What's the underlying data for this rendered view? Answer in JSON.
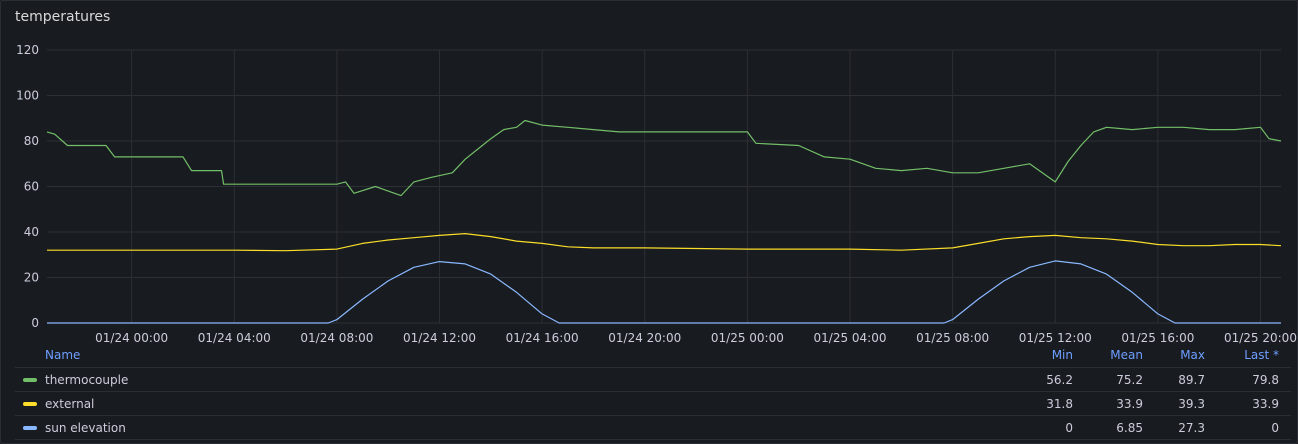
{
  "panel": {
    "title": "temperatures"
  },
  "chart_data": {
    "type": "line",
    "title": "temperatures",
    "xlabel": "",
    "ylabel": "",
    "ylim": [
      0,
      120
    ],
    "yticks": [
      "0",
      "20",
      "40",
      "60",
      "80",
      "100",
      "120"
    ],
    "x_start": "01/23 20:42",
    "x_end": "01/25 20:48",
    "xticks": [
      "01/24 00:00",
      "01/24 04:00",
      "01/24 08:00",
      "01/24 12:00",
      "01/24 16:00",
      "01/24 20:00",
      "01/25 00:00",
      "01/25 04:00",
      "01/25 08:00",
      "01/25 12:00",
      "01/25 16:00",
      "01/25 20:00"
    ],
    "grid": true,
    "legend_position": "bottom",
    "colors": {
      "thermocouple": "#73bf69",
      "external": "#fade2a",
      "sun elevation": "#8ab8ff"
    },
    "series": [
      {
        "name": "thermocouple",
        "color": "#73bf69",
        "points": [
          [
            "01/23 20:42",
            84
          ],
          [
            "01/23 21:00",
            83
          ],
          [
            "01/23 21:30",
            78
          ],
          [
            "01/23 23:00",
            78
          ],
          [
            "01/23 23:20",
            73
          ],
          [
            "01/24 02:00",
            73
          ],
          [
            "01/24 02:20",
            67
          ],
          [
            "01/24 03:30",
            67
          ],
          [
            "01/24 03:35",
            61
          ],
          [
            "01/24 08:00",
            61
          ],
          [
            "01/24 08:20",
            62
          ],
          [
            "01/24 08:40",
            57
          ],
          [
            "01/24 09:30",
            60
          ],
          [
            "01/24 10:00",
            58
          ],
          [
            "01/24 10:30",
            56
          ],
          [
            "01/24 11:00",
            62
          ],
          [
            "01/24 11:40",
            64
          ],
          [
            "01/24 12:30",
            66
          ],
          [
            "01/24 13:00",
            72
          ],
          [
            "01/24 13:40",
            78
          ],
          [
            "01/24 14:00",
            81
          ],
          [
            "01/24 14:30",
            85
          ],
          [
            "01/24 15:00",
            86
          ],
          [
            "01/24 15:20",
            89
          ],
          [
            "01/24 16:00",
            87
          ],
          [
            "01/24 17:00",
            86
          ],
          [
            "01/24 18:00",
            85
          ],
          [
            "01/24 19:00",
            84
          ],
          [
            "01/25 00:00",
            84
          ],
          [
            "01/25 00:20",
            79
          ],
          [
            "01/25 02:00",
            78
          ],
          [
            "01/25 03:00",
            73
          ],
          [
            "01/25 04:00",
            72
          ],
          [
            "01/25 05:00",
            68
          ],
          [
            "01/25 06:00",
            67
          ],
          [
            "01/25 07:00",
            68
          ],
          [
            "01/25 08:00",
            66
          ],
          [
            "01/25 09:00",
            66
          ],
          [
            "01/25 10:00",
            68
          ],
          [
            "01/25 11:00",
            70
          ],
          [
            "01/25 12:00",
            62
          ],
          [
            "01/25 12:30",
            71
          ],
          [
            "01/25 13:00",
            78
          ],
          [
            "01/25 13:30",
            84
          ],
          [
            "01/25 14:00",
            86
          ],
          [
            "01/25 15:00",
            85
          ],
          [
            "01/25 16:00",
            86
          ],
          [
            "01/25 17:00",
            86
          ],
          [
            "01/25 18:00",
            85
          ],
          [
            "01/25 19:00",
            85
          ],
          [
            "01/25 20:00",
            86
          ],
          [
            "01/25 20:20",
            81
          ],
          [
            "01/25 20:48",
            80
          ]
        ]
      },
      {
        "name": "external",
        "color": "#fade2a",
        "points": [
          [
            "01/23 20:42",
            32
          ],
          [
            "01/24 04:00",
            32
          ],
          [
            "01/24 06:00",
            31.8
          ],
          [
            "01/24 08:00",
            32.5
          ],
          [
            "01/24 09:00",
            35
          ],
          [
            "01/24 10:00",
            36.5
          ],
          [
            "01/24 11:00",
            37.5
          ],
          [
            "01/24 12:00",
            38.5
          ],
          [
            "01/24 13:00",
            39.3
          ],
          [
            "01/24 14:00",
            38
          ],
          [
            "01/24 15:00",
            36
          ],
          [
            "01/24 16:00",
            35
          ],
          [
            "01/24 17:00",
            33.5
          ],
          [
            "01/24 18:00",
            33
          ],
          [
            "01/24 20:00",
            33
          ],
          [
            "01/25 00:00",
            32.5
          ],
          [
            "01/25 04:00",
            32.5
          ],
          [
            "01/25 06:00",
            32
          ],
          [
            "01/25 08:00",
            33
          ],
          [
            "01/25 09:00",
            35
          ],
          [
            "01/25 10:00",
            37
          ],
          [
            "01/25 11:00",
            38
          ],
          [
            "01/25 12:00",
            38.5
          ],
          [
            "01/25 13:00",
            37.5
          ],
          [
            "01/25 14:00",
            37
          ],
          [
            "01/25 15:00",
            36
          ],
          [
            "01/25 16:00",
            34.5
          ],
          [
            "01/25 17:00",
            34
          ],
          [
            "01/25 18:00",
            34
          ],
          [
            "01/25 19:00",
            34.5
          ],
          [
            "01/25 20:00",
            34.5
          ],
          [
            "01/25 20:48",
            34
          ]
        ]
      },
      {
        "name": "sun elevation",
        "color": "#8ab8ff",
        "points": [
          [
            "01/23 20:42",
            0
          ],
          [
            "01/24 07:40",
            0
          ],
          [
            "01/24 08:00",
            1.5
          ],
          [
            "01/24 09:00",
            10.5
          ],
          [
            "01/24 10:00",
            18.5
          ],
          [
            "01/24 11:00",
            24.5
          ],
          [
            "01/24 12:00",
            27
          ],
          [
            "01/24 13:00",
            26
          ],
          [
            "01/24 14:00",
            21.5
          ],
          [
            "01/24 15:00",
            13.5
          ],
          [
            "01/24 16:00",
            4
          ],
          [
            "01/24 16:40",
            0
          ],
          [
            "01/25 07:40",
            0
          ],
          [
            "01/25 08:00",
            1.5
          ],
          [
            "01/25 09:00",
            10.5
          ],
          [
            "01/25 10:00",
            18.5
          ],
          [
            "01/25 11:00",
            24.5
          ],
          [
            "01/25 12:00",
            27.3
          ],
          [
            "01/25 13:00",
            26
          ],
          [
            "01/25 14:00",
            21.5
          ],
          [
            "01/25 15:00",
            13.5
          ],
          [
            "01/25 16:00",
            4
          ],
          [
            "01/25 16:40",
            0
          ],
          [
            "01/25 20:48",
            0
          ]
        ]
      }
    ]
  },
  "legend": {
    "headers": {
      "name": "Name",
      "min": "Min",
      "mean": "Mean",
      "max": "Max",
      "last": "Last *"
    },
    "rows": [
      {
        "name": "thermocouple",
        "color": "#73bf69",
        "min": "56.2",
        "mean": "75.2",
        "max": "89.7",
        "last": "79.8"
      },
      {
        "name": "external",
        "color": "#fade2a",
        "min": "31.8",
        "mean": "33.9",
        "max": "39.3",
        "last": "33.9"
      },
      {
        "name": "sun elevation",
        "color": "#8ab8ff",
        "min": "0",
        "mean": "6.85",
        "max": "27.3",
        "last": "0"
      }
    ]
  }
}
